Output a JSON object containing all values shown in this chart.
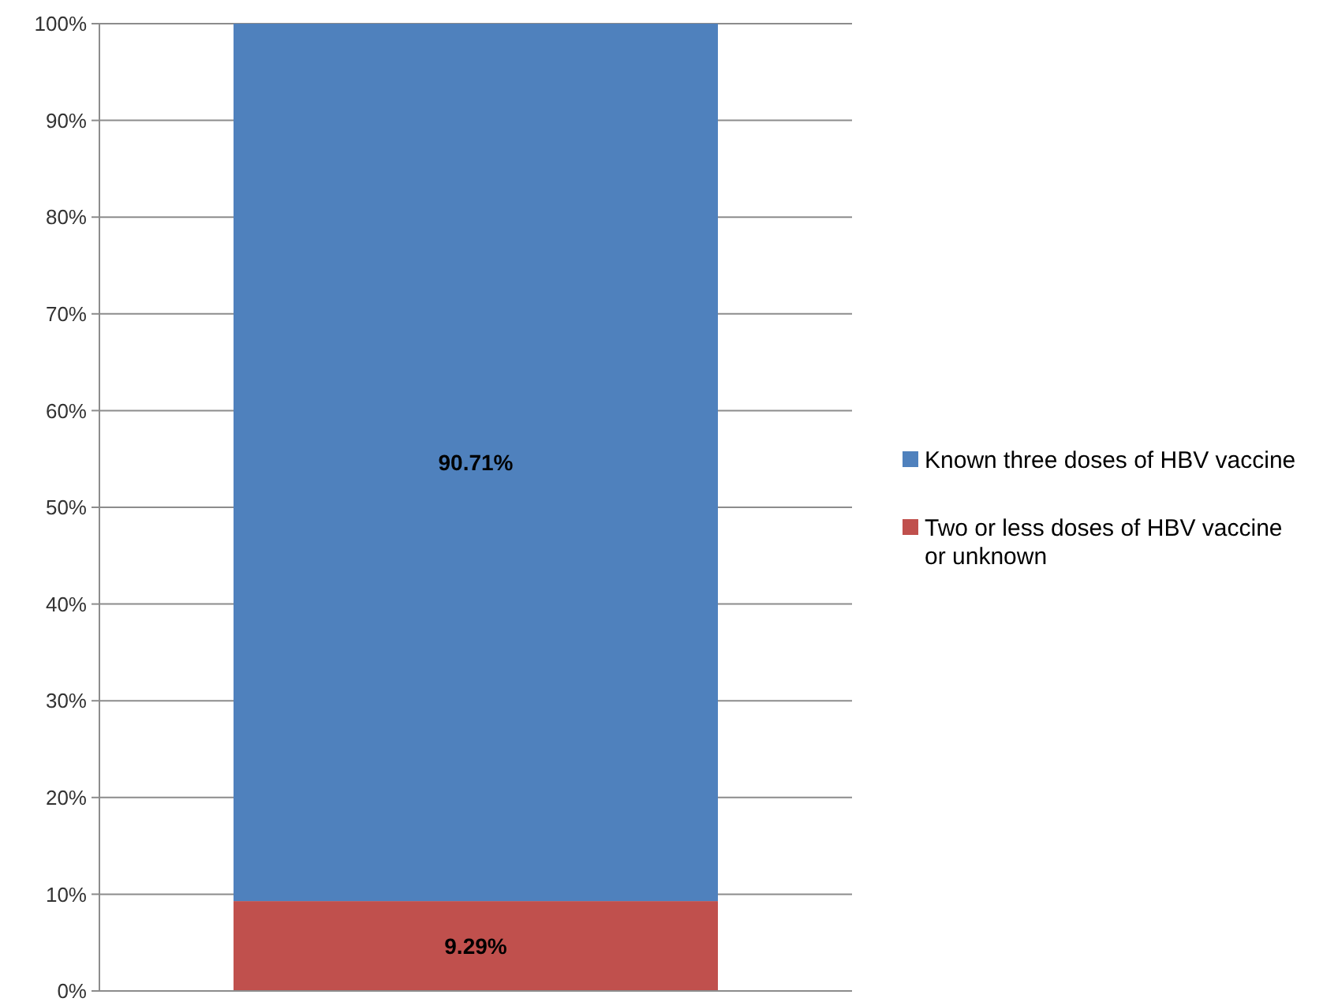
{
  "chart_data": {
    "type": "bar",
    "stacked": true,
    "categories": [
      null
    ],
    "series": [
      {
        "name": "Two or less doses of HBV vaccine or unknown",
        "color": "#c0504d",
        "values": [
          9.29
        ],
        "value_labels": [
          "9.29%"
        ]
      },
      {
        "name": "Known three doses of HBV vaccine",
        "color": "#4f81bd",
        "values": [
          90.71
        ],
        "value_labels": [
          "90.71%"
        ]
      }
    ],
    "ylim": [
      0,
      100
    ],
    "yticks": [
      {
        "value": 0,
        "label": "0%"
      },
      {
        "value": 10,
        "label": "10%"
      },
      {
        "value": 20,
        "label": "20%"
      },
      {
        "value": 30,
        "label": "30%"
      },
      {
        "value": 40,
        "label": "40%"
      },
      {
        "value": 50,
        "label": "50%"
      },
      {
        "value": 60,
        "label": "60%"
      },
      {
        "value": 70,
        "label": "70%"
      },
      {
        "value": 80,
        "label": "80%"
      },
      {
        "value": 90,
        "label": "90%"
      },
      {
        "value": 100,
        "label": "100%"
      }
    ],
    "grid": "y",
    "legend": "right"
  }
}
